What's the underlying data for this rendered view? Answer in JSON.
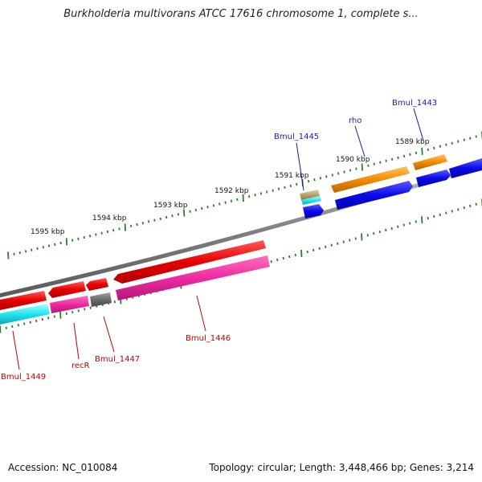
{
  "title": "Burkholderia multivorans ATCC 17616 chromosome 1, complete s...",
  "footer": {
    "accession": "Accession: NC_010084",
    "summary": "Topology: circular; Length: 3,448,466 bp; Genes: 3,214"
  },
  "colors": {
    "backbone": "#8a8a8a",
    "ticks": "#2e7d2e",
    "label_top": "#1a1aa6",
    "label_bottom": "#c00000"
  },
  "kbp_markers": [
    "1595 kbp",
    "1594 kbp",
    "1593 kbp",
    "1592 kbp",
    "1591 kbp",
    "1590 kbp",
    "1589 kbp"
  ],
  "gene_labels_top": [
    "Bmul_1445",
    "rho",
    "Bmul_1443"
  ],
  "gene_labels_bottom": [
    "Bmul_1449",
    "recR",
    "Bmul_1447",
    "Bmul_1446"
  ]
}
